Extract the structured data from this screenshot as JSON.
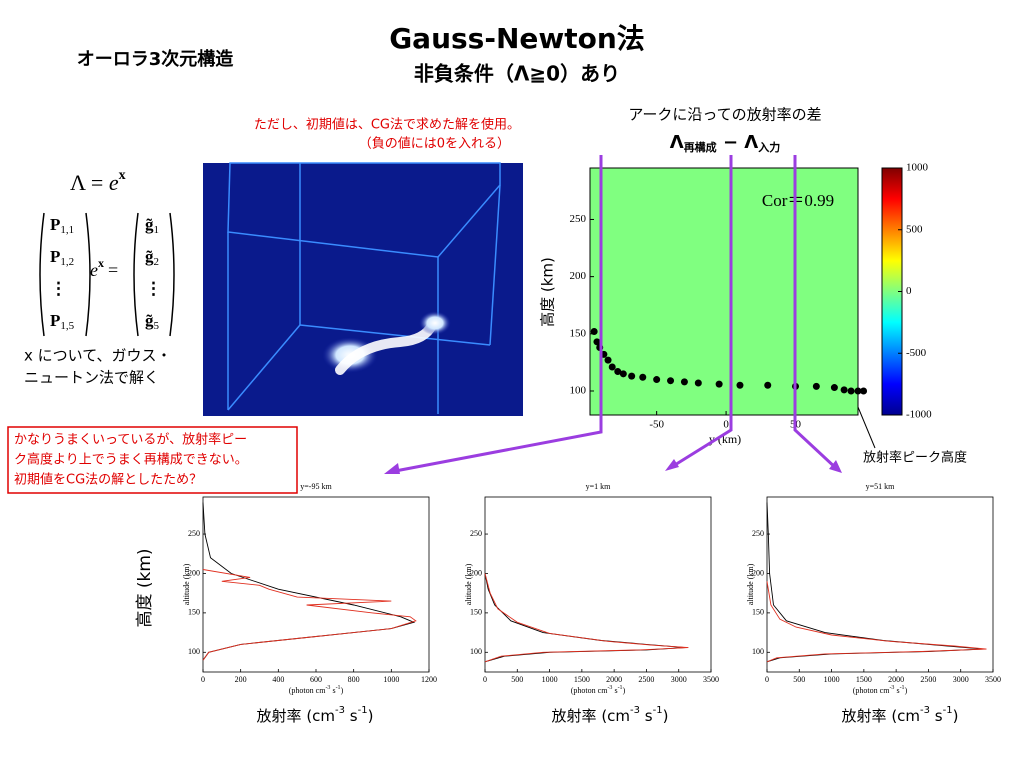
{
  "title": "Gauss-Newton法",
  "subtitle": "非負条件（Λ≧0）あり",
  "heading": "オーロラ3次元構造",
  "note_red": [
    "ただし、初期値は、CG法で求めた解を使用。",
    "（負の値には0を入れる）"
  ],
  "equation": {
    "lhs": "Λ",
    "eq": "=",
    "base": "e",
    "exp": "x"
  },
  "matrix_p": [
    {
      "sym": "P",
      "sub": "1,1"
    },
    {
      "sym": "P",
      "sub": "1,2"
    },
    {
      "sym": "⋮",
      "sub": ""
    },
    {
      "sym": "P",
      "sub": "1,5"
    }
  ],
  "matrix_g": [
    {
      "sym": "g̃",
      "sub": "1"
    },
    {
      "sym": "g̃",
      "sub": "2"
    },
    {
      "sym": "⋮",
      "sub": ""
    },
    {
      "sym": "g̃",
      "sub": "5"
    }
  ],
  "matrix_eq": {
    "base": "e",
    "exp": "x",
    "eq": "="
  },
  "method_text": [
    "x について、ガウス・",
    "ニュートン法で解く"
  ],
  "comment": [
    "かなりうまくいっているが、放射率ピー",
    "ク高度より上でうまく再構成できない。",
    "初期値をCG法の解としたため？"
  ],
  "diff_label": "アークに沿っての放射率の差",
  "diff_formula": [
    "Λ",
    "再構成",
    " − Λ",
    "入力"
  ],
  "peak_label": "放射率ピーク高度",
  "ylabel_jp": "高度 (km)",
  "emission_label": [
    "放射率 (cm",
    "-3",
    " s",
    "-1",
    ")"
  ],
  "chart_data": [
    {
      "type": "heatmap",
      "xlabel": "y (km)",
      "ylabel": "高度 (km)",
      "annotation": "Cor＝0.99",
      "xlim": [
        -98,
        95
      ],
      "xticks": [
        -50,
        0,
        50
      ],
      "ylim": [
        79,
        295
      ],
      "yticks": [
        100,
        150,
        200,
        250
      ],
      "clim": [
        -1000,
        1000
      ],
      "cticks": [
        -1000,
        -500,
        0,
        500,
        1000
      ],
      "color": "#80ff80",
      "series": [
        {
          "color": "#000000",
          "x": [
            -95,
            -93,
            -91,
            -88,
            -85,
            -82,
            -78,
            -74,
            -68,
            -60,
            -50,
            -40,
            -30,
            -20,
            -5,
            10,
            30,
            50,
            65,
            78,
            85,
            90,
            95,
            99
          ],
          "values": [
            152,
            143,
            138,
            132,
            127,
            121,
            117,
            115,
            113,
            112,
            110,
            109,
            108,
            107,
            106,
            105,
            105,
            104,
            104,
            103,
            101,
            100,
            100,
            100
          ]
        }
      ]
    },
    {
      "type": "profile",
      "title": "y=-95 km",
      "ylabel": "altitude (km)",
      "xlabel": [
        "(photon cm",
        "-3",
        " s",
        "-1",
        ")"
      ],
      "xlim": [
        0,
        1200
      ],
      "xticks": [
        0,
        200,
        400,
        600,
        800,
        1000,
        1200
      ],
      "ylim": [
        75,
        297
      ],
      "yticks": [
        100,
        150,
        200,
        250
      ],
      "series": [
        {
          "color": "#000000",
          "x": [
            0,
            10,
            40,
            150,
            400,
            800,
            1050,
            1120,
            1000,
            600,
            200,
            30,
            0
          ],
          "values": [
            290,
            250,
            220,
            200,
            180,
            160,
            145,
            138,
            130,
            120,
            110,
            100,
            90
          ]
        },
        {
          "color": "#e03020",
          "x": [
            0,
            250,
            100,
            300,
            350,
            500,
            1000,
            550,
            900,
            1100,
            1130,
            1000,
            600,
            200,
            30,
            0
          ],
          "values": [
            205,
            195,
            190,
            185,
            180,
            170,
            165,
            160,
            150,
            145,
            140,
            130,
            120,
            110,
            100,
            90
          ]
        }
      ]
    },
    {
      "type": "profile",
      "title": "y=1 km",
      "ylabel": "altitude (km)",
      "xlabel": [
        "(photon cm",
        "-3",
        " s",
        "-1",
        ")"
      ],
      "xlim": [
        0,
        3500
      ],
      "xticks": [
        0,
        500,
        1000,
        1500,
        2000,
        2500,
        3000,
        3500
      ],
      "ylim": [
        75,
        297
      ],
      "yticks": [
        100,
        150,
        200,
        250
      ],
      "series": [
        {
          "color": "#000000",
          "x": [
            0,
            50,
            150,
            400,
            900,
            1800,
            2500,
            3100,
            2500,
            1000,
            300,
            0
          ],
          "values": [
            200,
            180,
            160,
            140,
            125,
            115,
            110,
            106,
            103,
            100,
            95,
            88
          ]
        },
        {
          "color": "#e03020",
          "x": [
            0,
            80,
            200,
            500,
            1000,
            1900,
            2600,
            3150,
            2400,
            900,
            250,
            0
          ],
          "values": [
            200,
            175,
            155,
            138,
            124,
            114,
            109,
            106,
            103,
            100,
            95,
            88
          ]
        }
      ]
    },
    {
      "type": "profile",
      "title": "y=51 km",
      "ylabel": "altitude (km)",
      "xlabel": [
        "(photon cm",
        "-3",
        " s",
        "-1",
        ")"
      ],
      "xlim": [
        0,
        3500
      ],
      "xticks": [
        0,
        500,
        1000,
        1500,
        2000,
        2500,
        3000,
        3500
      ],
      "ylim": [
        75,
        297
      ],
      "yticks": [
        100,
        150,
        200,
        250
      ],
      "series": [
        {
          "color": "#000000",
          "x": [
            0,
            20,
            40,
            100,
            300,
            900,
            1800,
            2800,
            3350,
            2500,
            1000,
            200,
            0
          ],
          "values": [
            290,
            250,
            200,
            160,
            140,
            125,
            115,
            108,
            104,
            101,
            98,
            93,
            88
          ]
        },
        {
          "color": "#e03020",
          "x": [
            0,
            60,
            200,
            450,
            1000,
            1900,
            2900,
            3400,
            2400,
            900,
            150,
            0
          ],
          "values": [
            190,
            160,
            142,
            132,
            122,
            114,
            108,
            104,
            101,
            98,
            93,
            88
          ]
        }
      ]
    }
  ]
}
